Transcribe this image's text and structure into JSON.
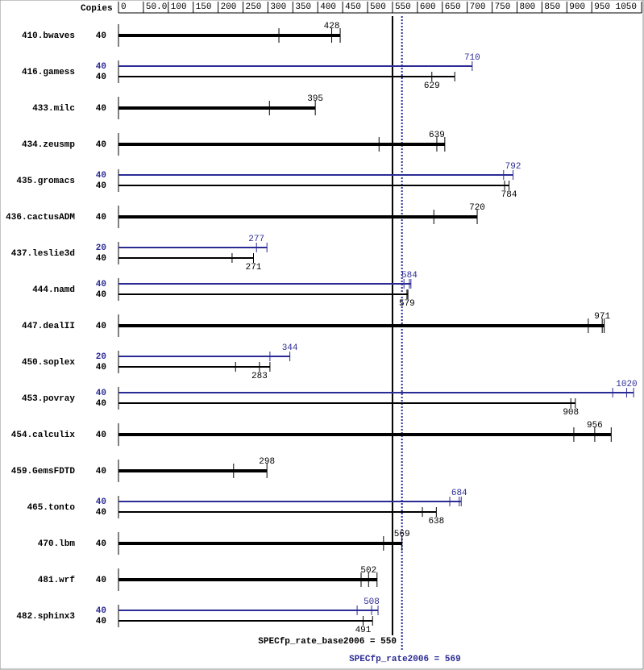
{
  "chart_data": {
    "type": "bar",
    "copies_label": "Copies",
    "xlim": [
      0,
      1050
    ],
    "xticks": [
      0,
      {
        "value": 50,
        "label": "50.0"
      },
      100,
      150,
      200,
      250,
      300,
      350,
      400,
      450,
      500,
      550,
      600,
      650,
      700,
      750,
      800,
      850,
      900,
      950,
      1050
    ],
    "base_color": "#000000",
    "peak_color": "#2b2b96",
    "benchmarks": [
      {
        "name": "410.bwaves",
        "base": {
          "copies": 40,
          "value": 428,
          "runs": [
            322,
            445
          ]
        }
      },
      {
        "name": "416.gamess",
        "peak": {
          "copies": 40,
          "value": 710,
          "runs": []
        },
        "base": {
          "copies": 40,
          "value": 629,
          "runs": [
            675
          ]
        }
      },
      {
        "name": "433.milc",
        "base": {
          "copies": 40,
          "value": 395,
          "runs": [
            303
          ]
        }
      },
      {
        "name": "434.zeusmp",
        "base": {
          "copies": 40,
          "value": 639,
          "runs": [
            523,
            655
          ]
        }
      },
      {
        "name": "435.gromacs",
        "peak": {
          "copies": 40,
          "value": 792,
          "runs": [
            773
          ]
        },
        "base": {
          "copies": 40,
          "value": 784,
          "runs": [
            775
          ]
        }
      },
      {
        "name": "436.cactusADM",
        "base": {
          "copies": 40,
          "value": 720,
          "runs": [
            633
          ]
        }
      },
      {
        "name": "437.leslie3d",
        "peak": {
          "copies": 20,
          "value": 277,
          "runs": [
            298
          ]
        },
        "base": {
          "copies": 40,
          "value": 271,
          "runs": [
            228
          ]
        }
      },
      {
        "name": "444.namd",
        "peak": {
          "copies": 40,
          "value": 584,
          "runs": [
            573,
            587
          ]
        },
        "base": {
          "copies": 40,
          "value": 579,
          "runs": [
            581
          ]
        }
      },
      {
        "name": "447.dealII",
        "base": {
          "copies": 40,
          "value": 971,
          "runs": [
            943,
            975
          ]
        }
      },
      {
        "name": "450.soplex",
        "peak": {
          "copies": 20,
          "value": 344,
          "runs": [
            304
          ]
        },
        "base": {
          "copies": 40,
          "value": 283,
          "runs": [
            235,
            304
          ]
        }
      },
      {
        "name": "453.povray",
        "peak": {
          "copies": 40,
          "value": 1020,
          "runs": [
            992,
            1034
          ]
        },
        "base": {
          "copies": 40,
          "value": 908,
          "runs": [
            917
          ]
        }
      },
      {
        "name": "454.calculix",
        "base": {
          "copies": 40,
          "value": 956,
          "runs": [
            914,
            989
          ]
        }
      },
      {
        "name": "459.GemsFDTD",
        "base": {
          "copies": 40,
          "value": 298,
          "runs": [
            231
          ]
        }
      },
      {
        "name": "465.tonto",
        "peak": {
          "copies": 40,
          "value": 684,
          "runs": [
            665,
            688
          ]
        },
        "base": {
          "copies": 40,
          "value": 638,
          "runs": [
            610
          ]
        }
      },
      {
        "name": "470.lbm",
        "base": {
          "copies": 40,
          "value": 569,
          "runs": [
            532
          ]
        }
      },
      {
        "name": "481.wrf",
        "base": {
          "copies": 40,
          "value": 502,
          "runs": [
            487,
            519
          ]
        }
      },
      {
        "name": "482.sphinx3",
        "peak": {
          "copies": 40,
          "value": 508,
          "runs": [
            479,
            521
          ]
        },
        "base": {
          "copies": 40,
          "value": 491,
          "runs": [
            510
          ]
        }
      }
    ],
    "summary": {
      "base": {
        "label": "SPECfp_rate_base2006 = 550",
        "value": 550
      },
      "peak": {
        "label": "SPECfp_rate2006 = 569",
        "value": 569
      }
    }
  }
}
